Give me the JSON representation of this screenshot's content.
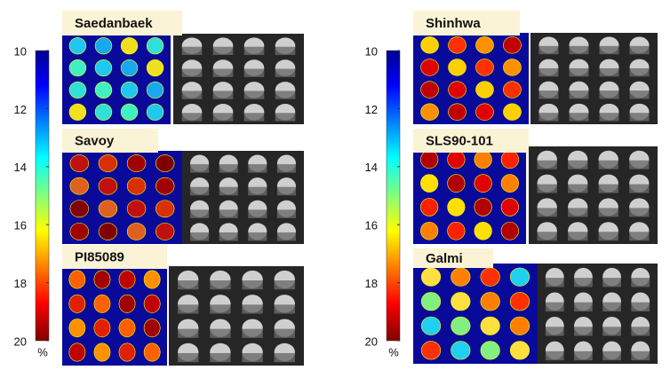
{
  "colorbars": [
    {
      "ticks": [
        10,
        12,
        14,
        16,
        18,
        20
      ],
      "range": [
        10,
        20
      ],
      "unit": "%"
    },
    {
      "ticks": [
        10,
        12,
        14,
        16,
        18,
        20
      ],
      "range": [
        10,
        20
      ],
      "unit": "%"
    }
  ],
  "panels": [
    {
      "label": "Saedanbaek"
    },
    {
      "label": "Savoy"
    },
    {
      "label": "PI85089"
    },
    {
      "label": "Shinhwa"
    },
    {
      "label": "SLS90-101"
    },
    {
      "label": "Galmi"
    }
  ]
}
